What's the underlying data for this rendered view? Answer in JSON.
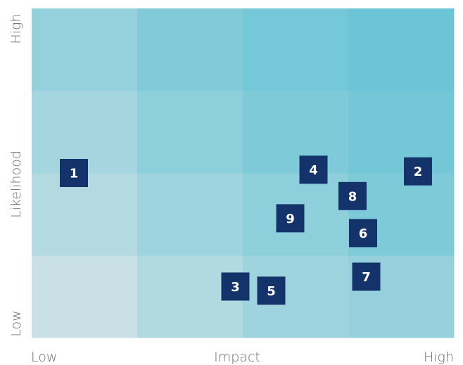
{
  "chart_data": {
    "type": "heatmap",
    "title": "",
    "xlabel": "Impact",
    "ylabel": "Likelihood",
    "x_tick_labels": [
      "Low",
      "High"
    ],
    "y_tick_labels": [
      "Low",
      "High"
    ],
    "xlim": [
      0,
      4
    ],
    "ylim": [
      0,
      4
    ],
    "grid_cols": 4,
    "grid_rows": 4,
    "cell_colors_bottom_to_top": [
      [
        "#c9e1e5",
        "#b1d9e0",
        "#9fd3de",
        "#96d0dd"
      ],
      [
        "#b3d9e1",
        "#9fd3de",
        "#8ecfdc",
        "#7fcad9"
      ],
      [
        "#a5d5df",
        "#8dd0dc",
        "#7fcad9",
        "#73c7d7"
      ],
      [
        "#95d1dd",
        "#81cbd9",
        "#75c8d8",
        "#6bc5d6"
      ]
    ],
    "marker_color": "#15336b",
    "risks": [
      {
        "label": "1",
        "x": 0.4,
        "y": 2.0
      },
      {
        "label": "2",
        "x": 3.66,
        "y": 2.02
      },
      {
        "label": "3",
        "x": 1.93,
        "y": 0.62
      },
      {
        "label": "4",
        "x": 2.67,
        "y": 2.04
      },
      {
        "label": "5",
        "x": 2.27,
        "y": 0.57
      },
      {
        "label": "6",
        "x": 3.14,
        "y": 1.27
      },
      {
        "label": "7",
        "x": 3.17,
        "y": 0.74
      },
      {
        "label": "8",
        "x": 3.04,
        "y": 1.72
      },
      {
        "label": "9",
        "x": 2.45,
        "y": 1.45
      }
    ]
  }
}
